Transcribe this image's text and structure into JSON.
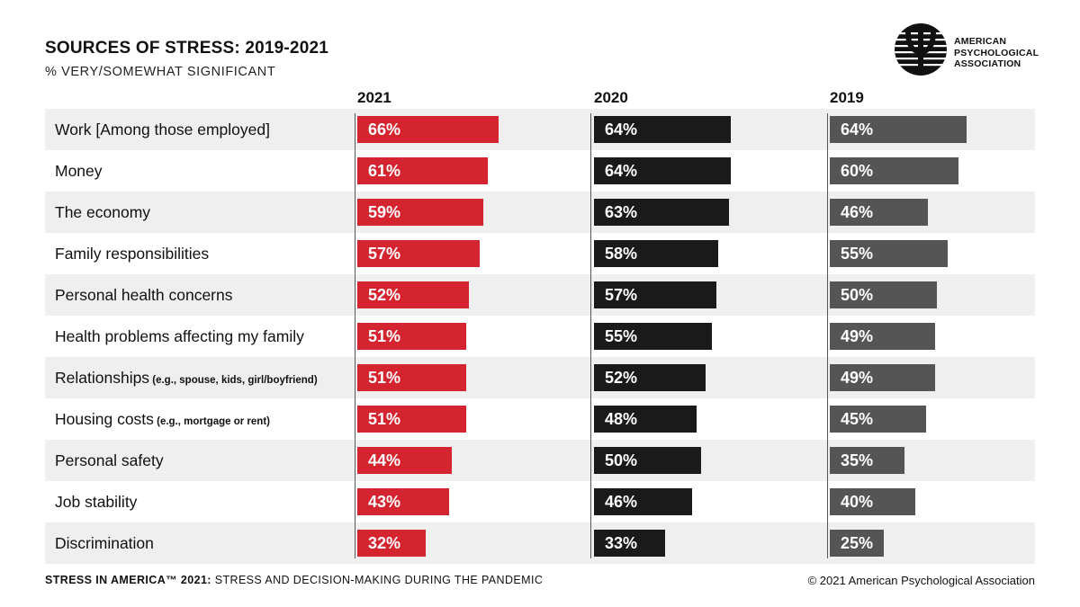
{
  "title": "SOURCES OF STRESS: 2019-2021",
  "subtitle": "% VERY/SOMEWHAT SIGNIFICANT",
  "logo": {
    "icon": "apa-psi-logo-icon",
    "line1": "AMERICAN",
    "line2": "PSYCHOLOGICAL",
    "line3": "ASSOCIATION"
  },
  "footer": {
    "left_bold": "STRESS IN AMERICA™ 2021:",
    "left_rest": " STRESS AND DECISION-MAKING DURING THE PANDEMIC",
    "right": "© 2021 American Psychological Association"
  },
  "colors": {
    "series_2021": "#d3242f",
    "series_2020": "#1a1a1a",
    "series_2019": "#555555",
    "row_shade": "#efefef"
  },
  "chart_data": {
    "type": "bar",
    "title": "SOURCES OF STRESS: 2019-2021",
    "subtitle": "% VERY/SOMEWHAT SIGNIFICANT",
    "orientation": "horizontal",
    "grid": false,
    "legend": "column headers at top",
    "xlim": [
      0,
      100
    ],
    "categories": [
      {
        "label": "Work [Among those employed]",
        "note": ""
      },
      {
        "label": "Money",
        "note": ""
      },
      {
        "label": "The economy",
        "note": ""
      },
      {
        "label": "Family responsibilities",
        "note": ""
      },
      {
        "label": "Personal health concerns",
        "note": ""
      },
      {
        "label": "Health problems affecting my family",
        "note": ""
      },
      {
        "label": "Relationships",
        "note": "(e.g., spouse, kids, girl/boyfriend)"
      },
      {
        "label": "Housing costs",
        "note": "(e.g., mortgage or rent)"
      },
      {
        "label": "Personal safety",
        "note": ""
      },
      {
        "label": "Job stability",
        "note": ""
      },
      {
        "label": "Discrimination",
        "note": ""
      }
    ],
    "series": [
      {
        "name": "2021",
        "values": [
          66,
          61,
          59,
          57,
          52,
          51,
          51,
          51,
          44,
          43,
          32
        ]
      },
      {
        "name": "2020",
        "values": [
          64,
          64,
          63,
          58,
          57,
          55,
          52,
          48,
          50,
          46,
          33
        ]
      },
      {
        "name": "2019",
        "values": [
          64,
          60,
          46,
          55,
          50,
          49,
          49,
          45,
          35,
          40,
          25
        ]
      }
    ],
    "value_suffix": "%"
  }
}
